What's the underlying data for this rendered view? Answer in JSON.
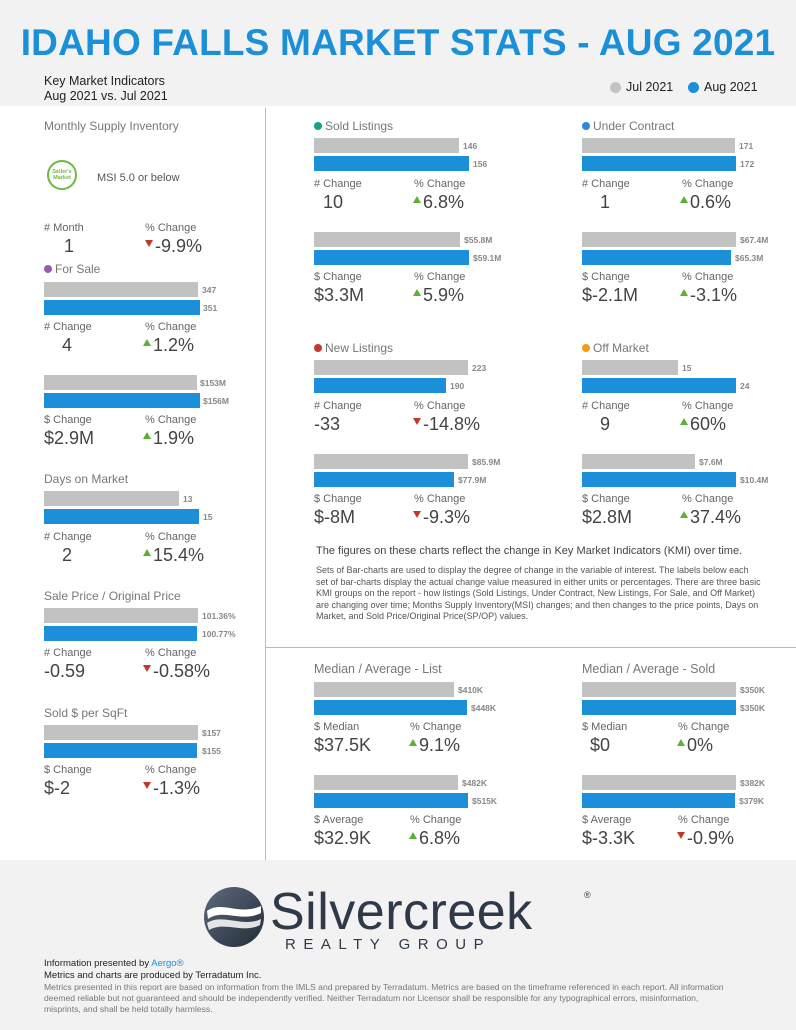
{
  "title": "IDAHO FALLS MARKET STATS - AUG 2021",
  "subtitle_line1": "Key Market Indicators",
  "subtitle_line2": "Aug 2021 vs. Jul 2021",
  "legend": {
    "jul": "Jul 2021",
    "aug": "Aug 2021"
  },
  "colors": {
    "jul": "#c2c2c2",
    "aug": "#1b8fd8",
    "up": "#5db035",
    "down": "#c0392b"
  },
  "msi": {
    "title": "Monthly Supply Inventory",
    "badge": "Seller's Market",
    "badge_text": "MSI 5.0 or below",
    "num_label": "# Month",
    "num_value": "1",
    "pct_label": "% Change",
    "pct_value": "-9.9%"
  },
  "for_sale": {
    "title": "For Sale",
    "count": {
      "jul": "347",
      "aug": "351",
      "num_label": "# Change",
      "num_value": "4",
      "pct_label": "% Change",
      "pct_value": "1.2%"
    },
    "dollar": {
      "jul": "$153M",
      "aug": "$156M",
      "num_label": "$ Change",
      "num_value": "$2.9M",
      "pct_label": "% Change",
      "pct_value": "1.9%"
    }
  },
  "dom": {
    "title": "Days on Market",
    "jul": "13",
    "aug": "15",
    "num_label": "# Change",
    "num_value": "2",
    "pct_label": "% Change",
    "pct_value": "15.4%"
  },
  "spop": {
    "title": "Sale Price / Original Price",
    "jul": "101.36%",
    "aug": "100.77%",
    "num_label": "# Change",
    "num_value": "-0.59",
    "pct_label": "% Change",
    "pct_value": "-0.58%"
  },
  "sqft": {
    "title": "Sold $ per SqFt",
    "jul": "$157",
    "aug": "$155",
    "num_label": "$ Change",
    "num_value": "$-2",
    "pct_label": "% Change",
    "pct_value": "-1.3%"
  },
  "sold": {
    "title": "Sold Listings",
    "count": {
      "jul": "146",
      "aug": "156",
      "num_label": "# Change",
      "num_value": "10",
      "pct_label": "% Change",
      "pct_value": "6.8%"
    },
    "dollar": {
      "jul": "$55.8M",
      "aug": "$59.1M",
      "num_label": "$ Change",
      "num_value": "$3.3M",
      "pct_label": "% Change",
      "pct_value": "5.9%"
    }
  },
  "under_contract": {
    "title": "Under Contract",
    "count": {
      "jul": "171",
      "aug": "172",
      "num_label": "# Change",
      "num_value": "1",
      "pct_label": "% Change",
      "pct_value": "0.6%"
    },
    "dollar": {
      "jul": "$67.4M",
      "aug": "$65.3M",
      "num_label": "$ Change",
      "num_value": "$-2.1M",
      "pct_label": "% Change",
      "pct_value": "-3.1%"
    }
  },
  "new_listings": {
    "title": "New Listings",
    "count": {
      "jul": "223",
      "aug": "190",
      "num_label": "# Change",
      "num_value": "-33",
      "pct_label": "% Change",
      "pct_value": "-14.8%"
    },
    "dollar": {
      "jul": "$85.9M",
      "aug": "$77.9M",
      "num_label": "$ Change",
      "num_value": "$-8M",
      "pct_label": "% Change",
      "pct_value": "-9.3%"
    }
  },
  "off_market": {
    "title": "Off Market",
    "count": {
      "jul": "15",
      "aug": "24",
      "num_label": "# Change",
      "num_value": "9",
      "pct_label": "% Change",
      "pct_value": "60%"
    },
    "dollar": {
      "jul": "$7.6M",
      "aug": "$10.4M",
      "num_label": "$ Change",
      "num_value": "$2.8M",
      "pct_label": "% Change",
      "pct_value": "37.4%"
    }
  },
  "explain": {
    "line1": "The figures on these charts reflect the change in Key Market Indicators (KMI) over time.",
    "line2": "Sets of Bar-charts are used to display the degree of change in the variable of interest. The labels below each set of bar-charts display the actual change value measured in either units or percentages. There are three basic KMI groups on the report - how listings (Sold Listings, Under Contract, New Listings, For Sale, and Off Market) are changing over time; Months Supply Inventory(MSI) changes; and then changes to the price points, Days on Market, and Sold Price/Original Price(SP/OP) values."
  },
  "list_prices": {
    "title": "Median / Average - List",
    "median": {
      "jul": "$410K",
      "aug": "$448K",
      "num_label": "$ Median",
      "num_value": "$37.5K",
      "pct_label": "% Change",
      "pct_value": "9.1%"
    },
    "average": {
      "jul": "$482K",
      "aug": "$515K",
      "num_label": "$ Average",
      "num_value": "$32.9K",
      "pct_label": "% Change",
      "pct_value": "6.8%"
    }
  },
  "sold_prices": {
    "title": "Median / Average - Sold",
    "median": {
      "jul": "$350K",
      "aug": "$350K",
      "num_label": "$ Median",
      "num_value": "$0",
      "pct_label": "% Change",
      "pct_value": "0%"
    },
    "average": {
      "jul": "$382K",
      "aug": "$379K",
      "num_label": "$ Average",
      "num_value": "$-3.3K",
      "pct_label": "% Change",
      "pct_value": "-0.9%"
    }
  },
  "logo": {
    "word": "Silvercreek",
    "reg": "®",
    "sub": "REALTY GROUP"
  },
  "footer": {
    "presented_prefix": "Information presented by ",
    "presented_brand": "Aergo®",
    "line2": "Metrics and charts are produced by Terradatum Inc.",
    "disclaimer": "Metrics presented in this report are based on information from the IMLS and prepared by Terradatum. Metrics are based on the timeframe referenced in each report. All information deemed reliable but not guaranteed and should be independently verified. Neither Terradatum nor Licensor shall be responsible for any typographical errors, misinformation, misprints, and shall be held totally harmless."
  }
}
